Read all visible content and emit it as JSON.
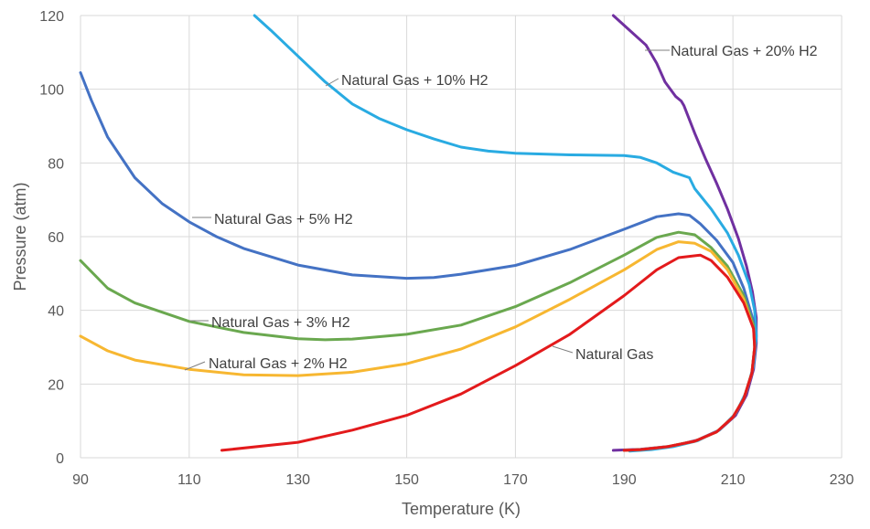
{
  "chart_data": {
    "type": "line",
    "title": "",
    "xlabel": "Temperature (K)",
    "ylabel": "Pressure (atm)",
    "xlim": [
      90,
      230
    ],
    "ylim": [
      0,
      120
    ],
    "xticks": [
      90,
      110,
      130,
      150,
      170,
      190,
      210,
      230
    ],
    "yticks": [
      0,
      20,
      40,
      60,
      80,
      100,
      120
    ],
    "grid": true,
    "legend": "inline labels",
    "series": [
      {
        "name": "Natural Gas",
        "color": "#e31a1c",
        "points": [
          [
            116,
            2
          ],
          [
            130,
            4.2
          ],
          [
            140,
            7.5
          ],
          [
            150,
            11.5
          ],
          [
            160,
            17.3
          ],
          [
            170,
            25
          ],
          [
            180,
            33.5
          ],
          [
            190,
            44
          ],
          [
            196,
            51
          ],
          [
            200,
            54.3
          ],
          [
            204,
            55
          ],
          [
            206,
            53.5
          ],
          [
            209,
            49
          ],
          [
            212,
            42
          ],
          [
            213.8,
            35
          ],
          [
            214,
            30
          ],
          [
            213.5,
            23
          ],
          [
            212,
            16
          ],
          [
            210,
            11
          ],
          [
            207,
            7
          ],
          [
            203,
            4.5
          ],
          [
            198,
            3
          ],
          [
            193,
            2.2
          ],
          [
            190,
            2
          ]
        ]
      },
      {
        "name": "Natural Gas + 2% H2",
        "color": "#f7b731",
        "points": [
          [
            90,
            33
          ],
          [
            95,
            29
          ],
          [
            100,
            26.5
          ],
          [
            110,
            24
          ],
          [
            120,
            22.5
          ],
          [
            130,
            22.3
          ],
          [
            140,
            23.2
          ],
          [
            150,
            25.5
          ],
          [
            160,
            29.5
          ],
          [
            170,
            35.5
          ],
          [
            180,
            43
          ],
          [
            190,
            51
          ],
          [
            196,
            56.5
          ],
          [
            200,
            58.6
          ],
          [
            203,
            58.2
          ],
          [
            206,
            56
          ],
          [
            209,
            51
          ],
          [
            212,
            43
          ],
          [
            213.8,
            35
          ],
          [
            214,
            30
          ],
          [
            213.5,
            23
          ],
          [
            212,
            16
          ],
          [
            210,
            11
          ],
          [
            207,
            7
          ],
          [
            203,
            4.5
          ],
          [
            198,
            3
          ],
          [
            193,
            2.2
          ],
          [
            190,
            2
          ]
        ]
      },
      {
        "name": "Natural Gas + 3% H2",
        "color": "#6aa84f",
        "points": [
          [
            90,
            53.5
          ],
          [
            95,
            46
          ],
          [
            100,
            42
          ],
          [
            110,
            37
          ],
          [
            120,
            34
          ],
          [
            130,
            32.3
          ],
          [
            135,
            32
          ],
          [
            140,
            32.2
          ],
          [
            150,
            33.5
          ],
          [
            160,
            36
          ],
          [
            170,
            41
          ],
          [
            180,
            47.5
          ],
          [
            190,
            55
          ],
          [
            196,
            59.8
          ],
          [
            200,
            61.2
          ],
          [
            203,
            60.5
          ],
          [
            206,
            57
          ],
          [
            209,
            52
          ],
          [
            212,
            44
          ],
          [
            213.8,
            36
          ],
          [
            214,
            30
          ],
          [
            213.5,
            23
          ],
          [
            212,
            16
          ],
          [
            210,
            11
          ],
          [
            207,
            7
          ],
          [
            203,
            4.5
          ],
          [
            198,
            3
          ],
          [
            193,
            2.2
          ],
          [
            190,
            2
          ]
        ]
      },
      {
        "name": "Natural Gas + 5% H2",
        "color": "#4472c4",
        "points": [
          [
            90,
            104.5
          ],
          [
            92,
            97
          ],
          [
            95,
            87
          ],
          [
            100,
            76
          ],
          [
            105,
            69
          ],
          [
            110,
            64
          ],
          [
            115,
            60
          ],
          [
            120,
            56.8
          ],
          [
            130,
            52.3
          ],
          [
            140,
            49.6
          ],
          [
            150,
            48.7
          ],
          [
            155,
            48.9
          ],
          [
            160,
            49.8
          ],
          [
            170,
            52.2
          ],
          [
            180,
            56.5
          ],
          [
            190,
            62
          ],
          [
            196,
            65.4
          ],
          [
            200,
            66.2
          ],
          [
            202,
            65.8
          ],
          [
            204,
            63.5
          ],
          [
            207,
            59
          ],
          [
            210,
            53
          ],
          [
            212,
            46
          ],
          [
            213.8,
            37
          ],
          [
            214,
            30
          ],
          [
            213.5,
            23
          ],
          [
            212,
            16
          ],
          [
            210,
            11
          ],
          [
            207,
            7
          ],
          [
            203,
            4.5
          ],
          [
            198,
            3
          ],
          [
            193,
            2.2
          ],
          [
            190,
            2
          ]
        ]
      },
      {
        "name": "Natural Gas + 10% H2",
        "color": "#29abe2",
        "points": [
          [
            122,
            120
          ],
          [
            125,
            116
          ],
          [
            130,
            109
          ],
          [
            135,
            102
          ],
          [
            140,
            96
          ],
          [
            145,
            92
          ],
          [
            150,
            89
          ],
          [
            155,
            86.5
          ],
          [
            160,
            84.3
          ],
          [
            165,
            83.2
          ],
          [
            170,
            82.6
          ],
          [
            180,
            82.2
          ],
          [
            190,
            82
          ],
          [
            193,
            81.5
          ],
          [
            196,
            80
          ],
          [
            199,
            77.5
          ],
          [
            202,
            76
          ],
          [
            203,
            73
          ],
          [
            206,
            67.5
          ],
          [
            209,
            61
          ],
          [
            211,
            55
          ],
          [
            213,
            47
          ],
          [
            214,
            40
          ],
          [
            214.3,
            33
          ],
          [
            213.8,
            25
          ],
          [
            212.5,
            18
          ],
          [
            210.5,
            12
          ],
          [
            207.5,
            7.5
          ],
          [
            203.5,
            4.6
          ],
          [
            199,
            3
          ],
          [
            195,
            2.2
          ],
          [
            191,
            1.8
          ]
        ]
      },
      {
        "name": "Natural Gas + 20% H2",
        "color": "#7030a0",
        "points": [
          [
            188,
            120
          ],
          [
            191,
            116
          ],
          [
            194,
            112
          ],
          [
            196,
            107
          ],
          [
            197.5,
            102
          ],
          [
            199.5,
            98
          ],
          [
            200.5,
            96.8
          ],
          [
            201,
            95.5
          ],
          [
            203,
            88
          ],
          [
            205,
            81
          ],
          [
            207,
            74.5
          ],
          [
            209,
            67.5
          ],
          [
            211,
            59.5
          ],
          [
            212.5,
            52
          ],
          [
            213.6,
            45
          ],
          [
            214.3,
            38
          ],
          [
            214.3,
            31
          ],
          [
            213.8,
            24
          ],
          [
            212.5,
            17
          ],
          [
            210.5,
            11.5
          ],
          [
            207.5,
            7.5
          ],
          [
            203.5,
            4.8
          ],
          [
            199,
            3.2
          ],
          [
            193,
            2.3
          ],
          [
            188,
            2
          ]
        ]
      }
    ],
    "annotations": [
      {
        "text": "Natural Gas + 20% H2",
        "series": 5
      },
      {
        "text": "Natural Gas + 10% H2",
        "series": 4
      },
      {
        "text": "Natural Gas + 5% H2",
        "series": 3
      },
      {
        "text": "Natural Gas + 3% H2",
        "series": 2
      },
      {
        "text": "Natural Gas + 2% H2",
        "series": 1
      },
      {
        "text": "Natural Gas",
        "series": 0
      }
    ]
  }
}
